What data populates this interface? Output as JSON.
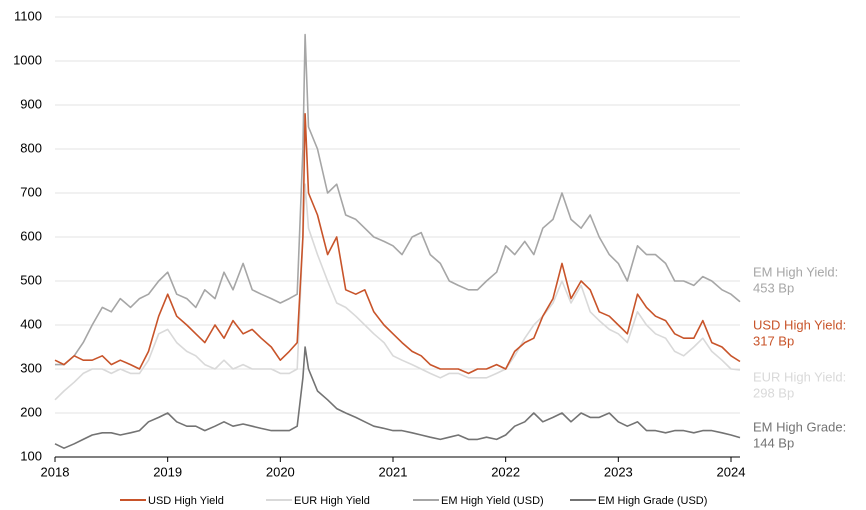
{
  "chart_data": {
    "type": "line",
    "x": [
      2018.0,
      2018.08,
      2018.17,
      2018.25,
      2018.33,
      2018.42,
      2018.5,
      2018.58,
      2018.67,
      2018.75,
      2018.83,
      2018.92,
      2019.0,
      2019.08,
      2019.17,
      2019.25,
      2019.33,
      2019.42,
      2019.5,
      2019.58,
      2019.67,
      2019.75,
      2019.83,
      2019.92,
      2020.0,
      2020.08,
      2020.15,
      2020.2,
      2020.22,
      2020.25,
      2020.33,
      2020.42,
      2020.5,
      2020.58,
      2020.67,
      2020.75,
      2020.83,
      2020.92,
      2021.0,
      2021.08,
      2021.17,
      2021.25,
      2021.33,
      2021.42,
      2021.5,
      2021.58,
      2021.67,
      2021.75,
      2021.83,
      2021.92,
      2022.0,
      2022.08,
      2022.17,
      2022.25,
      2022.33,
      2022.42,
      2022.5,
      2022.58,
      2022.67,
      2022.75,
      2022.83,
      2022.92,
      2023.0,
      2023.08,
      2023.17,
      2023.25,
      2023.33,
      2023.42,
      2023.5,
      2023.58,
      2023.67,
      2023.75,
      2023.83,
      2023.92,
      2024.0,
      2024.08
    ],
    "series": [
      {
        "name": "USD High Yield",
        "color": "#c8542a",
        "values": [
          320,
          310,
          330,
          320,
          320,
          330,
          310,
          320,
          310,
          300,
          340,
          420,
          470,
          420,
          400,
          380,
          360,
          400,
          370,
          410,
          380,
          390,
          370,
          350,
          320,
          340,
          360,
          600,
          880,
          700,
          650,
          560,
          600,
          480,
          470,
          480,
          430,
          400,
          380,
          360,
          340,
          330,
          310,
          300,
          300,
          300,
          290,
          300,
          300,
          310,
          300,
          340,
          360,
          370,
          420,
          460,
          540,
          460,
          500,
          480,
          430,
          420,
          400,
          380,
          470,
          440,
          420,
          410,
          380,
          370,
          370,
          410,
          360,
          350,
          330,
          317
        ]
      },
      {
        "name": "EUR High Yield",
        "color": "#d9d9d9",
        "values": [
          230,
          250,
          270,
          290,
          300,
          300,
          290,
          300,
          290,
          290,
          320,
          380,
          390,
          360,
          340,
          330,
          310,
          300,
          320,
          300,
          310,
          300,
          300,
          300,
          290,
          290,
          300,
          600,
          720,
          620,
          560,
          500,
          450,
          440,
          420,
          400,
          380,
          360,
          330,
          320,
          310,
          300,
          290,
          280,
          290,
          290,
          280,
          280,
          280,
          290,
          300,
          330,
          370,
          400,
          420,
          450,
          500,
          450,
          490,
          430,
          410,
          390,
          380,
          360,
          430,
          400,
          380,
          370,
          340,
          330,
          350,
          370,
          340,
          320,
          300,
          298
        ]
      },
      {
        "name": "EM High Yield (USD)",
        "color": "#a6a6a6",
        "values": [
          310,
          310,
          330,
          360,
          400,
          440,
          430,
          460,
          440,
          460,
          470,
          500,
          520,
          470,
          460,
          440,
          480,
          460,
          520,
          480,
          540,
          480,
          470,
          460,
          450,
          460,
          470,
          800,
          1060,
          850,
          800,
          700,
          720,
          650,
          640,
          620,
          600,
          590,
          580,
          560,
          600,
          610,
          560,
          540,
          500,
          490,
          480,
          480,
          500,
          520,
          580,
          560,
          590,
          560,
          620,
          640,
          700,
          640,
          620,
          650,
          600,
          560,
          540,
          500,
          580,
          560,
          560,
          540,
          500,
          500,
          490,
          510,
          500,
          480,
          470,
          453
        ]
      },
      {
        "name": "EM High Grade (USD)",
        "color": "#737373",
        "values": [
          130,
          120,
          130,
          140,
          150,
          155,
          155,
          150,
          155,
          160,
          180,
          190,
          200,
          180,
          170,
          170,
          160,
          170,
          180,
          170,
          175,
          170,
          165,
          160,
          160,
          160,
          170,
          280,
          350,
          300,
          250,
          230,
          210,
          200,
          190,
          180,
          170,
          165,
          160,
          160,
          155,
          150,
          145,
          140,
          145,
          150,
          140,
          140,
          145,
          140,
          150,
          170,
          180,
          200,
          180,
          190,
          200,
          180,
          200,
          190,
          190,
          200,
          180,
          170,
          180,
          160,
          160,
          155,
          160,
          160,
          155,
          160,
          160,
          155,
          150,
          144
        ]
      }
    ],
    "end_labels": [
      {
        "lines": [
          "EM High Yield:",
          "453 Bp"
        ],
        "color": "#a6a6a6"
      },
      {
        "lines": [
          "USD High Yield:",
          "317 Bp"
        ],
        "color": "#c8542a"
      },
      {
        "lines": [
          "EUR High Yield:",
          "298 Bp"
        ],
        "color": "#d9d9d9"
      },
      {
        "lines": [
          "EM High Grade:",
          "144 Bp"
        ],
        "color": "#737373"
      }
    ],
    "xlim": [
      2018,
      2024.08
    ],
    "xticks": [
      2018,
      2019,
      2020,
      2021,
      2022,
      2023,
      2024
    ],
    "ylim": [
      100,
      1100
    ],
    "yticks": [
      100,
      200,
      300,
      400,
      500,
      600,
      700,
      800,
      900,
      1000,
      1100
    ],
    "grid": true
  }
}
